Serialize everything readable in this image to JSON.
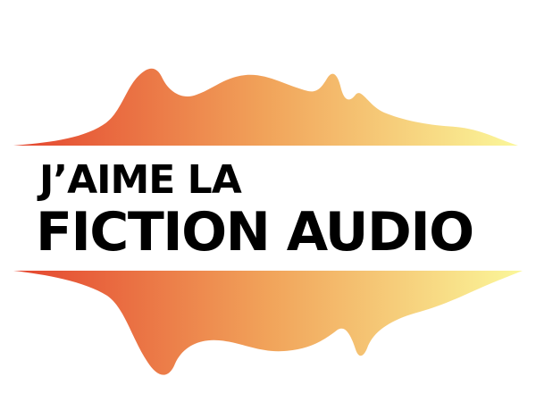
{
  "logo": {
    "line_1": "J’AIME LA",
    "line_2": "FICTION AUDIO"
  },
  "colors": {
    "gradient_start": "#e4452f",
    "gradient_mid": "#f1a35a",
    "gradient_end": "#fbf79a",
    "text": "#000000"
  }
}
